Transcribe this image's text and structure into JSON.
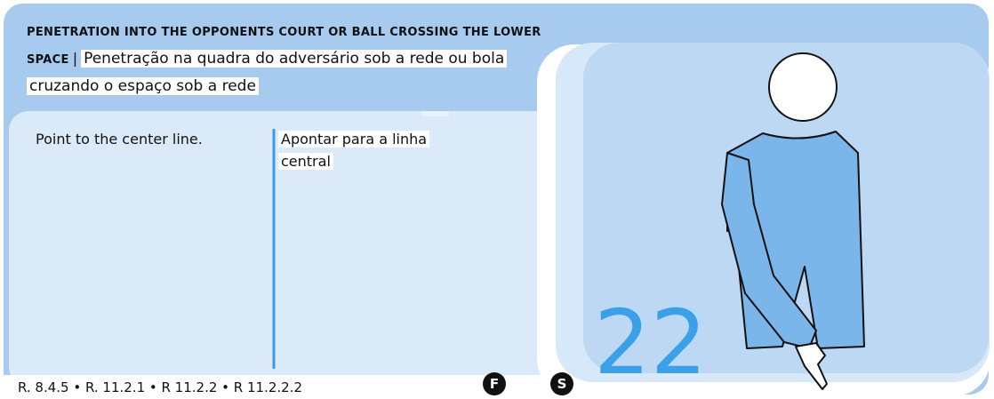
{
  "header": {
    "title_en": "PENETRATION INTO THE OPPONENTS COURT OR BALL CROSSING THE LOWER SPACE",
    "separator": "|",
    "title_pt": "Penetração na quadra do adversário sob a rede ou bola cruzando o espaço sob a rede"
  },
  "description": {
    "en": "Point to the center line.",
    "pt": "Apontar para a linha central"
  },
  "signal_number": 22,
  "footer": {
    "rules": "R. 8.4.5 • R. 11.2.1 • R 11.2.2 • R 11.2.2.2",
    "badges": [
      "F",
      "S"
    ]
  }
}
